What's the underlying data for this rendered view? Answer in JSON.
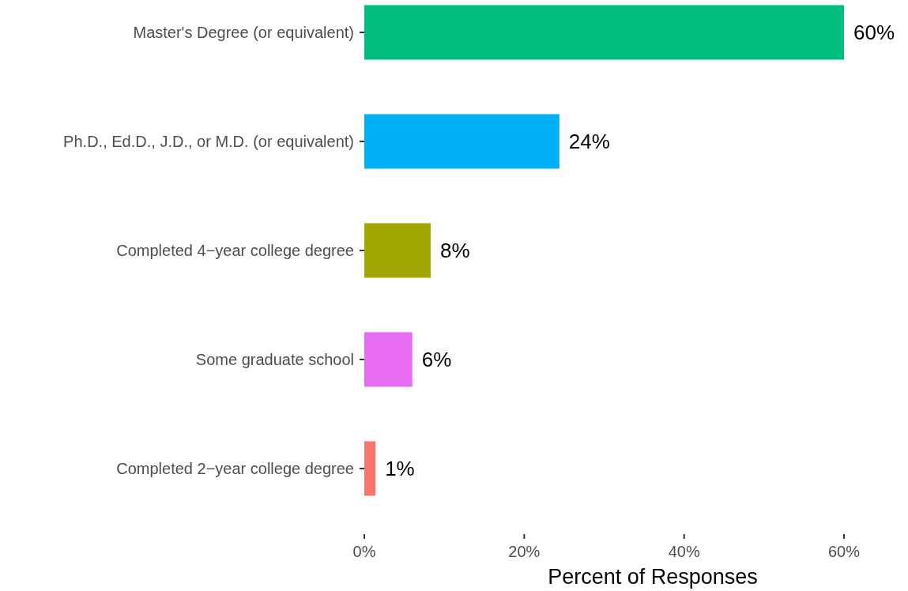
{
  "chart_data": {
    "type": "bar",
    "orientation": "horizontal",
    "categories": [
      "Master's Degree (or equivalent)",
      "Ph.D., Ed.D., J.D., or M.D. (or equivalent)",
      "Completed 4−year college degree",
      "Some graduate school",
      "Completed 2−year college degree"
    ],
    "values": [
      60,
      24.4,
      8.3,
      6,
      1.4
    ],
    "colors": [
      "#00bf7d",
      "#00b0f6",
      "#a3a500",
      "#e76bf3",
      "#f8766d"
    ],
    "value_labels": [
      "60%",
      "24%",
      "8%",
      "6%",
      "1%"
    ],
    "xlabel": "Percent of Responses",
    "xlim": [
      0,
      60
    ],
    "xticks": [
      {
        "value": 0,
        "label": "0%"
      },
      {
        "value": 20,
        "label": "20%"
      },
      {
        "value": 40,
        "label": "40%"
      },
      {
        "value": 60,
        "label": "60%"
      }
    ]
  }
}
